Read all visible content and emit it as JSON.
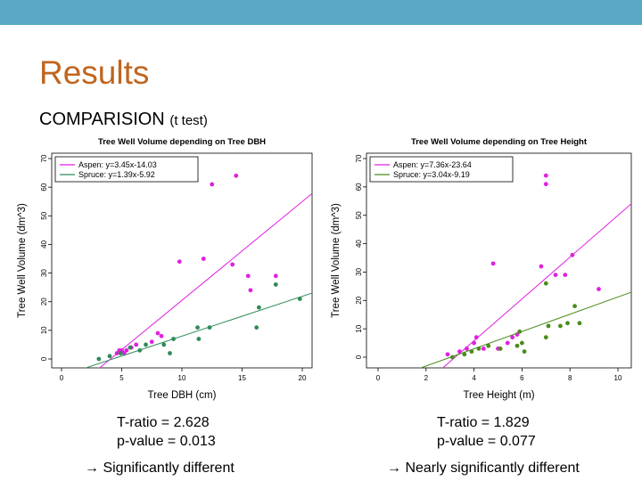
{
  "slide": {
    "title": "Results",
    "subtitle_main": "COMPARISION",
    "subtitle_small": "(t test)",
    "accent_color": "#c0651f",
    "bar_color": "#5aa8c6"
  },
  "stats": [
    {
      "t_ratio": "T-ratio = 2.628",
      "p_value": "p-value = 0.013",
      "conclusion": "Significantly different"
    },
    {
      "t_ratio": "T-ratio = 1.829",
      "p_value": "p-value = 0.077",
      "conclusion": "Nearly significantly different"
    }
  ],
  "arrow_icon": "→",
  "chart_data": [
    {
      "type": "scatter",
      "title": "Tree Well Volume depending on Tree DBH",
      "xlabel": "Tree DBH (cm)",
      "ylabel": "Tree Well Volume (dm^3)",
      "xlim": [
        0,
        20
      ],
      "ylim": [
        0,
        70
      ],
      "xticks": [
        0,
        5,
        10,
        15,
        20
      ],
      "yticks": [
        0,
        10,
        20,
        30,
        40,
        50,
        60,
        70
      ],
      "grid": false,
      "legend": "top-left",
      "series": [
        {
          "name": "Aspen: y=3.45x-14.03",
          "color": "#e020e0",
          "line": {
            "slope": 3.45,
            "intercept": -14.03
          },
          "points": [
            [
              4.6,
              2
            ],
            [
              4.8,
              3
            ],
            [
              5.0,
              3
            ],
            [
              5.2,
              2
            ],
            [
              5.4,
              3
            ],
            [
              5.8,
              4
            ],
            [
              6.2,
              5
            ],
            [
              7.5,
              6
            ],
            [
              8.0,
              9
            ],
            [
              8.3,
              8
            ],
            [
              9.8,
              34
            ],
            [
              11.8,
              35
            ],
            [
              12.5,
              61
            ],
            [
              14.2,
              33
            ],
            [
              14.5,
              64
            ],
            [
              15.5,
              29
            ],
            [
              15.7,
              24
            ],
            [
              17.8,
              29
            ]
          ]
        },
        {
          "name": "Spruce: y=1.39x-5.92",
          "color": "#2e8b57",
          "line": {
            "slope": 1.39,
            "intercept": -5.92
          },
          "points": [
            [
              3.1,
              0
            ],
            [
              4.0,
              1
            ],
            [
              4.9,
              2
            ],
            [
              5.7,
              4
            ],
            [
              6.5,
              3
            ],
            [
              7.0,
              5
            ],
            [
              8.5,
              5
            ],
            [
              9.0,
              2
            ],
            [
              9.3,
              7
            ],
            [
              11.3,
              11
            ],
            [
              11.4,
              7
            ],
            [
              12.3,
              11
            ],
            [
              16.2,
              11
            ],
            [
              16.4,
              18
            ],
            [
              17.8,
              26
            ],
            [
              19.8,
              21
            ]
          ]
        }
      ]
    },
    {
      "type": "scatter",
      "title": "Tree Well Volume depending on Tree Height",
      "xlabel": "Tree Height (m)",
      "ylabel": "Tree Well Volume (dm^3)",
      "xlim": [
        0,
        10
      ],
      "ylim": [
        0,
        70
      ],
      "xticks": [
        0,
        2,
        4,
        6,
        8,
        10
      ],
      "yticks": [
        0,
        10,
        20,
        30,
        40,
        50,
        60,
        70
      ],
      "grid": false,
      "legend": "top-left",
      "series": [
        {
          "name": "Aspen: y=7.36x-23.64",
          "color": "#e020e0",
          "line": {
            "slope": 7.36,
            "intercept": -23.64
          },
          "points": [
            [
              2.9,
              1
            ],
            [
              3.4,
              2
            ],
            [
              3.7,
              3
            ],
            [
              4.0,
              5
            ],
            [
              4.1,
              7
            ],
            [
              4.4,
              3
            ],
            [
              4.8,
              33
            ],
            [
              5.0,
              3
            ],
            [
              5.4,
              5
            ],
            [
              5.6,
              7
            ],
            [
              5.8,
              8
            ],
            [
              6.8,
              32
            ],
            [
              7.0,
              61
            ],
            [
              7.0,
              64
            ],
            [
              7.4,
              29
            ],
            [
              7.8,
              29
            ],
            [
              8.1,
              36
            ],
            [
              9.2,
              24
            ]
          ]
        },
        {
          "name": "Spruce: y=3.04x-9.19",
          "color": "#4a8c1c",
          "line": {
            "slope": 3.04,
            "intercept": -9.19
          },
          "points": [
            [
              3.1,
              0
            ],
            [
              3.6,
              1
            ],
            [
              3.9,
              2
            ],
            [
              4.2,
              3
            ],
            [
              4.6,
              4
            ],
            [
              5.1,
              3
            ],
            [
              5.8,
              4
            ],
            [
              5.9,
              9
            ],
            [
              6.0,
              5
            ],
            [
              6.1,
              2
            ],
            [
              7.0,
              7
            ],
            [
              7.0,
              26
            ],
            [
              7.1,
              11
            ],
            [
              7.6,
              11
            ],
            [
              7.9,
              12
            ],
            [
              8.2,
              18
            ],
            [
              8.4,
              12
            ]
          ]
        }
      ]
    }
  ]
}
